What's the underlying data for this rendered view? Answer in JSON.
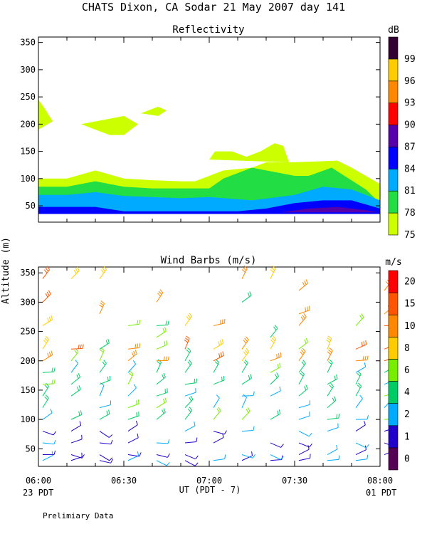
{
  "header": {
    "title": "CHATS Dixon, CA  Sodar  21 May 2007  day 141"
  },
  "footer": {
    "note": "Prelimiary Data",
    "left_time_label": "23 PDT",
    "right_time_label": "01 PDT",
    "x_axis_label": "UT  (PDT - 7)"
  },
  "chart_data": [
    {
      "type": "heatmap",
      "title": "Reflectivity",
      "ylabel": "Altitude (m)",
      "xlabel": "UT  (PDT - 7)",
      "ylim": [
        20,
        360
      ],
      "yticks": [
        50,
        100,
        150,
        200,
        250,
        300,
        350
      ],
      "xticks": [
        "06:00",
        "06:30",
        "07:00",
        "07:30",
        "08:00"
      ],
      "colorbar": {
        "unit": "dB",
        "levels": [
          75,
          78,
          81,
          84,
          87,
          90,
          93,
          96,
          99
        ],
        "colors": [
          "#ccff00",
          "#22dd44",
          "#00aaff",
          "#0000ff",
          "#5500aa",
          "#ff0000",
          "#ff8800",
          "#ffcc00",
          "#330033"
        ]
      },
      "contours_minutes_vs_altitude_m": [
        {
          "level": 75,
          "points": [
            [
              0,
              100
            ],
            [
              10,
              100
            ],
            [
              20,
              115
            ],
            [
              30,
              100
            ],
            [
              40,
              97
            ],
            [
              50,
              95
            ],
            [
              55,
              95
            ],
            [
              60,
              105
            ],
            [
              65,
              115
            ],
            [
              75,
              120
            ],
            [
              80,
              130
            ],
            [
              90,
              130
            ],
            [
              105,
              133
            ],
            [
              110,
              120
            ],
            [
              120,
              90
            ],
            [
              120,
              35
            ],
            [
              0,
              35
            ]
          ]
        },
        {
          "level": 75,
          "points": [
            [
              -3,
              190
            ],
            [
              -1,
              245
            ],
            [
              2,
              230
            ],
            [
              5,
              205
            ]
          ]
        },
        {
          "level": 75,
          "points": [
            [
              15,
              200
            ],
            [
              25,
              210
            ],
            [
              30,
              215
            ],
            [
              35,
              200
            ],
            [
              30,
              180
            ],
            [
              25,
              180
            ]
          ]
        },
        {
          "level": 75,
          "points": [
            [
              36,
              220
            ],
            [
              42,
              232
            ],
            [
              45,
              225
            ],
            [
              42,
              215
            ]
          ]
        },
        {
          "level": 75,
          "points": [
            [
              60,
              135
            ],
            [
              62,
              150
            ],
            [
              68,
              150
            ],
            [
              73,
              140
            ],
            [
              78,
              150
            ],
            [
              83,
              165
            ],
            [
              86,
              160
            ],
            [
              88,
              130
            ]
          ]
        },
        {
          "level": 78,
          "points": [
            [
              0,
              85
            ],
            [
              10,
              85
            ],
            [
              20,
              95
            ],
            [
              30,
              85
            ],
            [
              40,
              82
            ],
            [
              50,
              82
            ],
            [
              60,
              82
            ],
            [
              65,
              100
            ],
            [
              75,
              120
            ],
            [
              90,
              105
            ],
            [
              95,
              105
            ],
            [
              103,
              120
            ],
            [
              115,
              80
            ],
            [
              120,
              55
            ],
            [
              120,
              35
            ],
            [
              0,
              35
            ]
          ]
        },
        {
          "level": 81,
          "points": [
            [
              0,
              70
            ],
            [
              10,
              70
            ],
            [
              20,
              75
            ],
            [
              30,
              68
            ],
            [
              40,
              66
            ],
            [
              50,
              64
            ],
            [
              60,
              66
            ],
            [
              75,
              60
            ],
            [
              90,
              70
            ],
            [
              100,
              85
            ],
            [
              110,
              80
            ],
            [
              120,
              60
            ],
            [
              120,
              35
            ],
            [
              0,
              35
            ]
          ]
        },
        {
          "level": 84,
          "points": [
            [
              0,
              48
            ],
            [
              10,
              48
            ],
            [
              20,
              48
            ],
            [
              30,
              40
            ],
            [
              45,
              40
            ],
            [
              60,
              40
            ],
            [
              70,
              40
            ],
            [
              80,
              45
            ],
            [
              90,
              55
            ],
            [
              100,
              60
            ],
            [
              110,
              60
            ],
            [
              120,
              45
            ],
            [
              120,
              35
            ],
            [
              0,
              35
            ]
          ]
        },
        {
          "level": 87,
          "points": [
            [
              85,
              38
            ],
            [
              95,
              45
            ],
            [
              105,
              48
            ],
            [
              115,
              42
            ],
            [
              120,
              38
            ]
          ]
        }
      ]
    },
    {
      "type": "scatter",
      "title": "Wind Barbs (m/s)",
      "ylabel": "Altitude (m)",
      "xlabel": "UT  (PDT - 7)",
      "ylim": [
        20,
        360
      ],
      "yticks": [
        50,
        100,
        150,
        200,
        250,
        300,
        350
      ],
      "xticks": [
        "06:00",
        "06:30",
        "07:00",
        "07:30",
        "08:00"
      ],
      "colorbar": {
        "unit": "m/s",
        "levels": [
          0,
          1,
          2,
          4,
          6,
          8,
          10,
          15,
          20
        ],
        "colors": [
          "#550055",
          "#2200cc",
          "#00aaff",
          "#00cc66",
          "#77ee00",
          "#ffcc00",
          "#ff8800",
          "#ff5500",
          "#ff0000"
        ]
      },
      "columns_minutes": [
        0,
        10,
        20,
        30,
        40,
        50,
        60,
        70,
        80,
        90,
        100,
        110,
        120
      ],
      "altitudes_m": [
        30,
        40,
        60,
        80,
        100,
        120,
        140,
        160,
        180,
        200,
        220,
        240,
        260,
        280,
        300,
        320,
        340
      ]
    }
  ]
}
